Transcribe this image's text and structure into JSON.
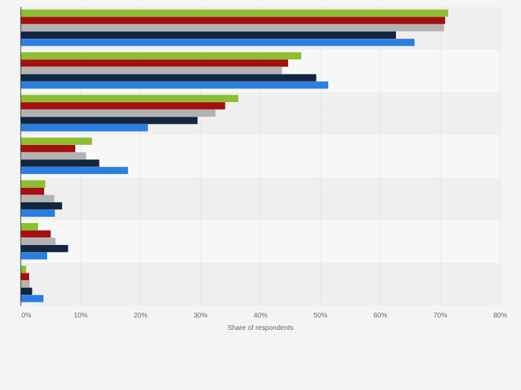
{
  "chart_data": {
    "type": "bar",
    "orientation": "horizontal",
    "title": "",
    "xlabel": "Share of respondents",
    "ylabel": "",
    "xlim": [
      0,
      80
    ],
    "xticks": [
      "0%",
      "10%",
      "20%",
      "30%",
      "40%",
      "50%",
      "60%",
      "70%",
      "80%"
    ],
    "grid": true,
    "legend": "none",
    "categories": [
      "",
      "",
      "",
      "",
      "",
      "",
      ""
    ],
    "series": [
      {
        "name": "",
        "color": "#8cbf2e",
        "values": [
          71.3,
          46.8,
          36.3,
          11.9,
          4.1,
          2.9,
          0.9
        ]
      },
      {
        "name": "",
        "color": "#a4100f",
        "values": [
          70.8,
          44.6,
          34.1,
          9.1,
          3.9,
          5.0,
          1.4
        ]
      },
      {
        "name": "",
        "color": "#b3b3b3",
        "values": [
          70.6,
          43.6,
          32.5,
          10.9,
          5.6,
          5.8,
          1.5
        ]
      },
      {
        "name": "",
        "color": "#13253f",
        "values": [
          62.6,
          49.3,
          29.5,
          13.1,
          6.9,
          7.9,
          1.9
        ]
      },
      {
        "name": "",
        "color": "#2b7fe0",
        "values": [
          65.7,
          51.3,
          21.2,
          17.9,
          5.7,
          4.4,
          3.8
        ]
      }
    ]
  }
}
